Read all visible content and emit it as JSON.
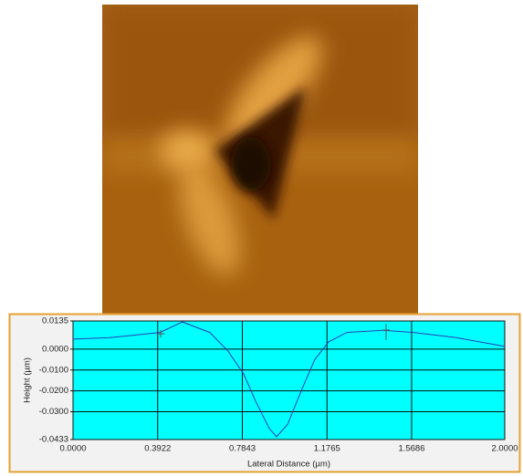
{
  "chart_data": {
    "type": "line",
    "x_label": "Lateral Distance (µm)",
    "y_label": "Height (µm)",
    "x": [
      0,
      0.169,
      0.402,
      0.507,
      0.634,
      0.719,
      0.791,
      0.846,
      0.909,
      0.943,
      0.994,
      1.057,
      1.12,
      1.184,
      1.268,
      1.438,
      1.577,
      1.776,
      2.0
    ],
    "series": [
      {
        "color": "#2a3fb8",
        "values": [
          0.0048,
          0.0055,
          0.008,
          0.013,
          0.008,
          -0.001,
          -0.012,
          -0.025,
          -0.038,
          -0.042,
          -0.036,
          -0.02,
          -0.005,
          0.0035,
          0.008,
          0.009,
          0.008,
          0.0055,
          0.0013
        ]
      }
    ],
    "xlim": [
      0,
      2
    ],
    "ylim": [
      -0.0433,
      0.0135
    ],
    "xticks": [
      {
        "value": 0,
        "label": "0.0000"
      },
      0.3922,
      0.7843,
      1.1765,
      1.5686,
      {
        "value": 2,
        "label": "2.0000"
      }
    ],
    "yticks": [
      0.0135,
      {
        "value": 0,
        "label": "0.0000"
      },
      {
        "value": -0.01,
        "label": "-0.0100"
      },
      {
        "value": -0.02,
        "label": "-0.0200"
      },
      {
        "value": -0.03,
        "label": "-0.0300"
      },
      -0.0433
    ],
    "grid": true,
    "background": "#00ffff"
  }
}
